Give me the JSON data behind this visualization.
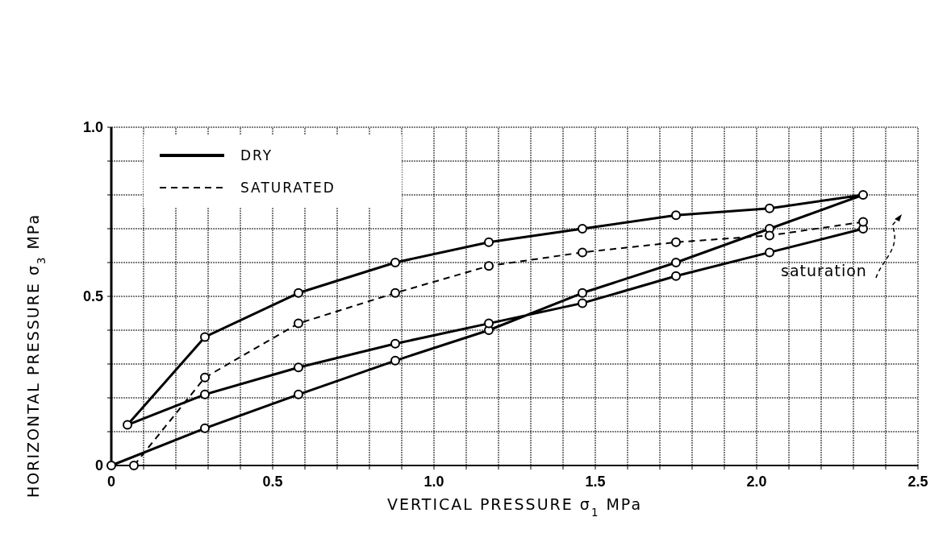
{
  "chart_data": {
    "type": "line",
    "xlabel": "VERTICAL PRESSURE σ$_{1}$ MPa",
    "ylabel": "HORIZONTAL PRESSURE σ$_{3}$ MPa",
    "xlim": [
      0,
      2.5
    ],
    "ylim": [
      0,
      1.0
    ],
    "xticks": [
      0,
      {
        "value": 0.1,
        "label": null
      },
      {
        "value": 0.2,
        "label": null
      },
      {
        "value": 0.3,
        "label": null
      },
      {
        "value": 0.4,
        "label": null
      },
      0.5,
      {
        "value": 0.6,
        "label": null
      },
      {
        "value": 0.7,
        "label": null
      },
      {
        "value": 0.8,
        "label": null
      },
      {
        "value": 0.9,
        "label": null
      },
      {
        "value": 1,
        "label": "1.0"
      },
      {
        "value": 1.1,
        "label": null
      },
      {
        "value": 1.2,
        "label": null
      },
      {
        "value": 1.3,
        "label": null
      },
      {
        "value": 1.4,
        "label": null
      },
      1.5,
      {
        "value": 1.6,
        "label": null
      },
      {
        "value": 1.7,
        "label": null
      },
      {
        "value": 1.8,
        "label": null
      },
      {
        "value": 1.9,
        "label": null
      },
      {
        "value": 2,
        "label": "2.0"
      },
      {
        "value": 2.1,
        "label": null
      },
      {
        "value": 2.2,
        "label": null
      },
      {
        "value": 2.3,
        "label": null
      },
      {
        "value": 2.4,
        "label": null
      },
      2.5
    ],
    "yticks": [
      0,
      {
        "value": 0.1,
        "label": null
      },
      {
        "value": 0.2,
        "label": null
      },
      {
        "value": 0.3,
        "label": null
      },
      {
        "value": 0.4,
        "label": null
      },
      0.5,
      {
        "value": 0.6,
        "label": null
      },
      {
        "value": 0.7,
        "label": null
      },
      {
        "value": 0.8,
        "label": null
      },
      {
        "value": 0.9,
        "label": null
      },
      {
        "value": 1,
        "label": "1.0"
      }
    ],
    "grid": true,
    "legend": "top left",
    "marker": "circle",
    "series": [
      {
        "name": "DRY",
        "color": "#000000",
        "line_style": "solid",
        "x": [
          0,
          0.29,
          0.58,
          0.88,
          1.17,
          1.46,
          1.75,
          2.04,
          2.33,
          2.04,
          1.75,
          1.46,
          1.17,
          0.88,
          0.58,
          0.29,
          0.05,
          0.29,
          0.58,
          0.88,
          1.17,
          1.46,
          1.75,
          2.04,
          2.33
        ],
        "values": [
          0,
          0.11,
          0.21,
          0.31,
          0.4,
          0.51,
          0.6,
          0.7,
          0.8,
          0.76,
          0.74,
          0.7,
          0.66,
          0.6,
          0.51,
          0.38,
          0.12,
          0.21,
          0.29,
          0.36,
          0.42,
          0.48,
          0.56,
          0.63,
          0.7
        ]
      },
      {
        "name": "SATURATED",
        "color": "#000000",
        "line_style": "dashed",
        "x": [
          2.33,
          2.04,
          1.75,
          1.46,
          1.17,
          0.88,
          0.58,
          0.29,
          0.07
        ],
        "values": [
          0.72,
          0.68,
          0.66,
          0.63,
          0.59,
          0.51,
          0.42,
          0.26,
          0
        ]
      }
    ],
    "annotations": [
      "saturation"
    ]
  }
}
